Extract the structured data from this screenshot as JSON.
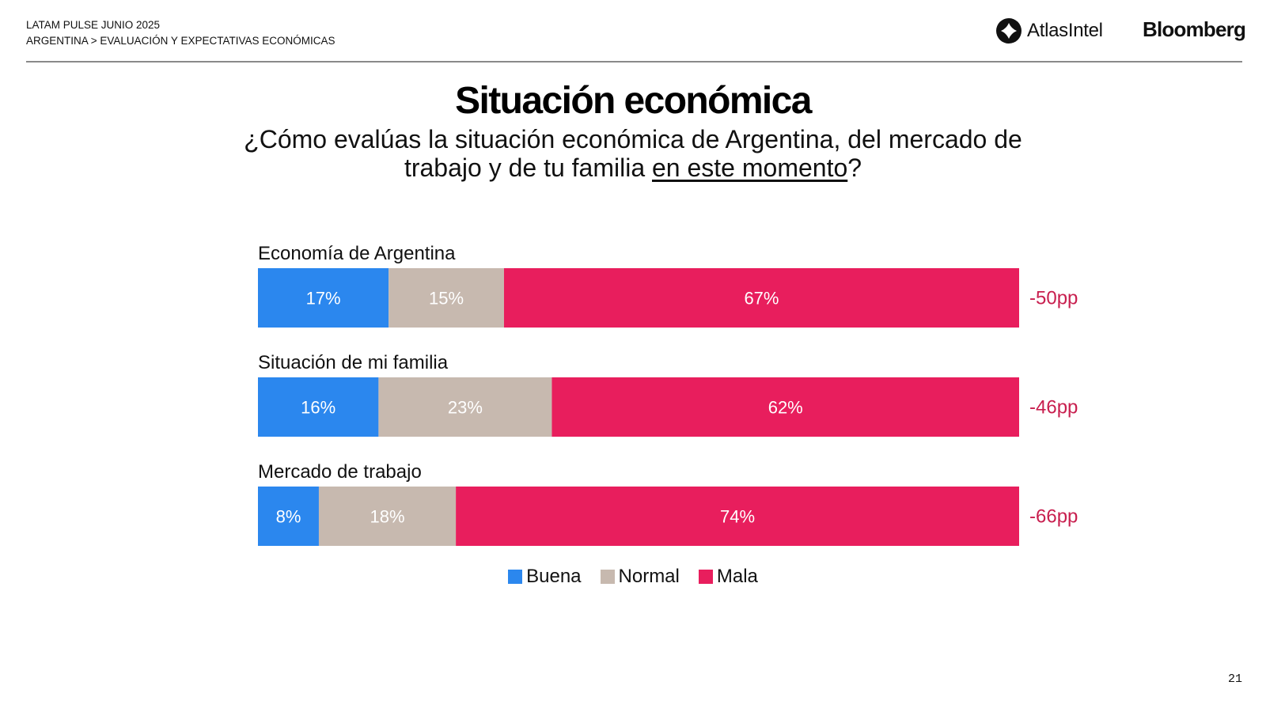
{
  "header": {
    "line1": "LATAM PULSE JUNIO 2025",
    "line2": "ARGENTINA > EVALUACIÓN Y EXPECTATIVAS ECONÓMICAS",
    "logo_atlas": "AtlasIntel",
    "logo_bloomberg": "Bloomberg"
  },
  "title": "Situación económica",
  "subtitle": {
    "part1": "¿Cómo evalúas la situación económica de Argentina, del mercado de trabajo y de tu familia ",
    "underlined": "en este momento",
    "part2": "?"
  },
  "chart_data": {
    "type": "bar",
    "orientation": "horizontal-stacked",
    "categories": [
      "Economía de Argentina",
      "Situación de mi familia",
      "Mercado de trabajo"
    ],
    "series": [
      {
        "name": "Buena",
        "color": "#2b87ee",
        "values": [
          17,
          16,
          8
        ],
        "labels": [
          "17%",
          "16%",
          "8%"
        ]
      },
      {
        "name": "Normal",
        "color": "#c7b9af",
        "values": [
          15,
          23,
          18
        ],
        "labels": [
          "15%",
          "23%",
          "18%"
        ]
      },
      {
        "name": "Mala",
        "color": "#e81e5d",
        "values": [
          67,
          62,
          74
        ],
        "labels": [
          "67%",
          "62%",
          "74%"
        ]
      }
    ],
    "net": [
      "-50pp",
      "-46pp",
      "-66pp"
    ],
    "net_color": "#c81e4e",
    "legend_position": "bottom-center"
  },
  "page_number": "21"
}
